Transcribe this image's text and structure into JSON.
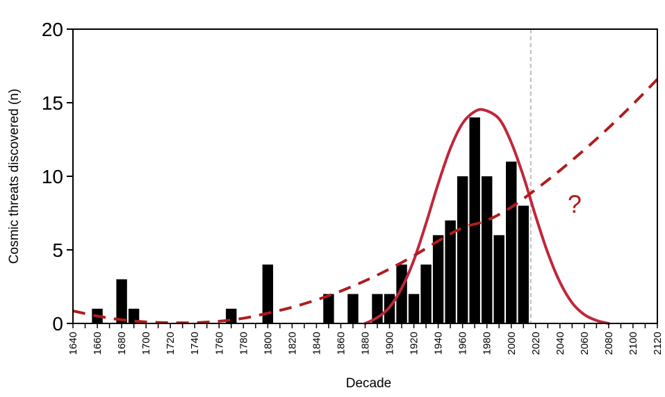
{
  "chart_data": {
    "type": "bar",
    "xlabel": "Decade",
    "ylabel": "Cosmic threats discovered (n)",
    "xlim": [
      1640,
      2120
    ],
    "ylim": [
      0,
      20
    ],
    "yticks": [
      0,
      5,
      10,
      15,
      20
    ],
    "xticks": [
      1640,
      1660,
      1680,
      1700,
      1720,
      1740,
      1760,
      1780,
      1800,
      1820,
      1840,
      1860,
      1880,
      1900,
      1920,
      1940,
      1960,
      1980,
      2000,
      2020,
      2040,
      2060,
      2080,
      2100,
      2120
    ],
    "grid": false,
    "bars": {
      "x": [
        1660,
        1680,
        1690,
        1770,
        1800,
        1850,
        1870,
        1890,
        1900,
        1910,
        1920,
        1930,
        1940,
        1950,
        1960,
        1970,
        1980,
        1990,
        2000,
        2010
      ],
      "values": [
        1,
        3,
        1,
        1,
        4,
        2,
        2,
        2,
        2,
        4,
        2,
        4,
        6,
        7,
        10,
        14,
        10,
        6,
        11,
        8
      ],
      "color": "#000000"
    },
    "fit_curve": {
      "style": "solid",
      "color": "#c0263a",
      "peak_x": 1978,
      "peak_y": 14.5,
      "x_range": [
        1880,
        2080
      ],
      "points": [
        [
          1880,
          0
        ],
        [
          1890,
          0.4
        ],
        [
          1900,
          1.1
        ],
        [
          1910,
          2.4
        ],
        [
          1920,
          4.3
        ],
        [
          1930,
          6.8
        ],
        [
          1940,
          9.5
        ],
        [
          1950,
          11.9
        ],
        [
          1960,
          13.6
        ],
        [
          1970,
          14.4
        ],
        [
          1978,
          14.5
        ],
        [
          1990,
          13.9
        ],
        [
          2000,
          12.3
        ],
        [
          2010,
          10.0
        ],
        [
          2020,
          7.3
        ],
        [
          2030,
          4.8
        ],
        [
          2040,
          2.8
        ],
        [
          2050,
          1.4
        ],
        [
          2060,
          0.6
        ],
        [
          2070,
          0.2
        ],
        [
          2080,
          0
        ]
      ]
    },
    "trend_curve": {
      "style": "dashed",
      "color": "#b01c1c",
      "points": [
        [
          1640,
          0.85
        ],
        [
          1660,
          0.5
        ],
        [
          1680,
          0.25
        ],
        [
          1700,
          0.1
        ],
        [
          1720,
          0.05
        ],
        [
          1740,
          0.05
        ],
        [
          1760,
          0.15
        ],
        [
          1780,
          0.35
        ],
        [
          1800,
          0.7
        ],
        [
          1820,
          1.1
        ],
        [
          1840,
          1.6
        ],
        [
          1860,
          2.2
        ],
        [
          1880,
          2.9
        ],
        [
          1900,
          3.7
        ],
        [
          1920,
          4.6
        ],
        [
          1940,
          5.6
        ],
        [
          1960,
          6.5
        ],
        [
          1980,
          7.0
        ],
        [
          2000,
          7.9
        ],
        [
          2020,
          9.1
        ],
        [
          2040,
          10.4
        ],
        [
          2060,
          11.8
        ],
        [
          2080,
          13.3
        ],
        [
          2100,
          14.9
        ],
        [
          2120,
          16.6
        ]
      ]
    },
    "present_marker": {
      "x": 2016,
      "color": "#bbbbbb"
    },
    "annotation": {
      "text": "?",
      "x": 2052,
      "y": 8.1
    }
  }
}
